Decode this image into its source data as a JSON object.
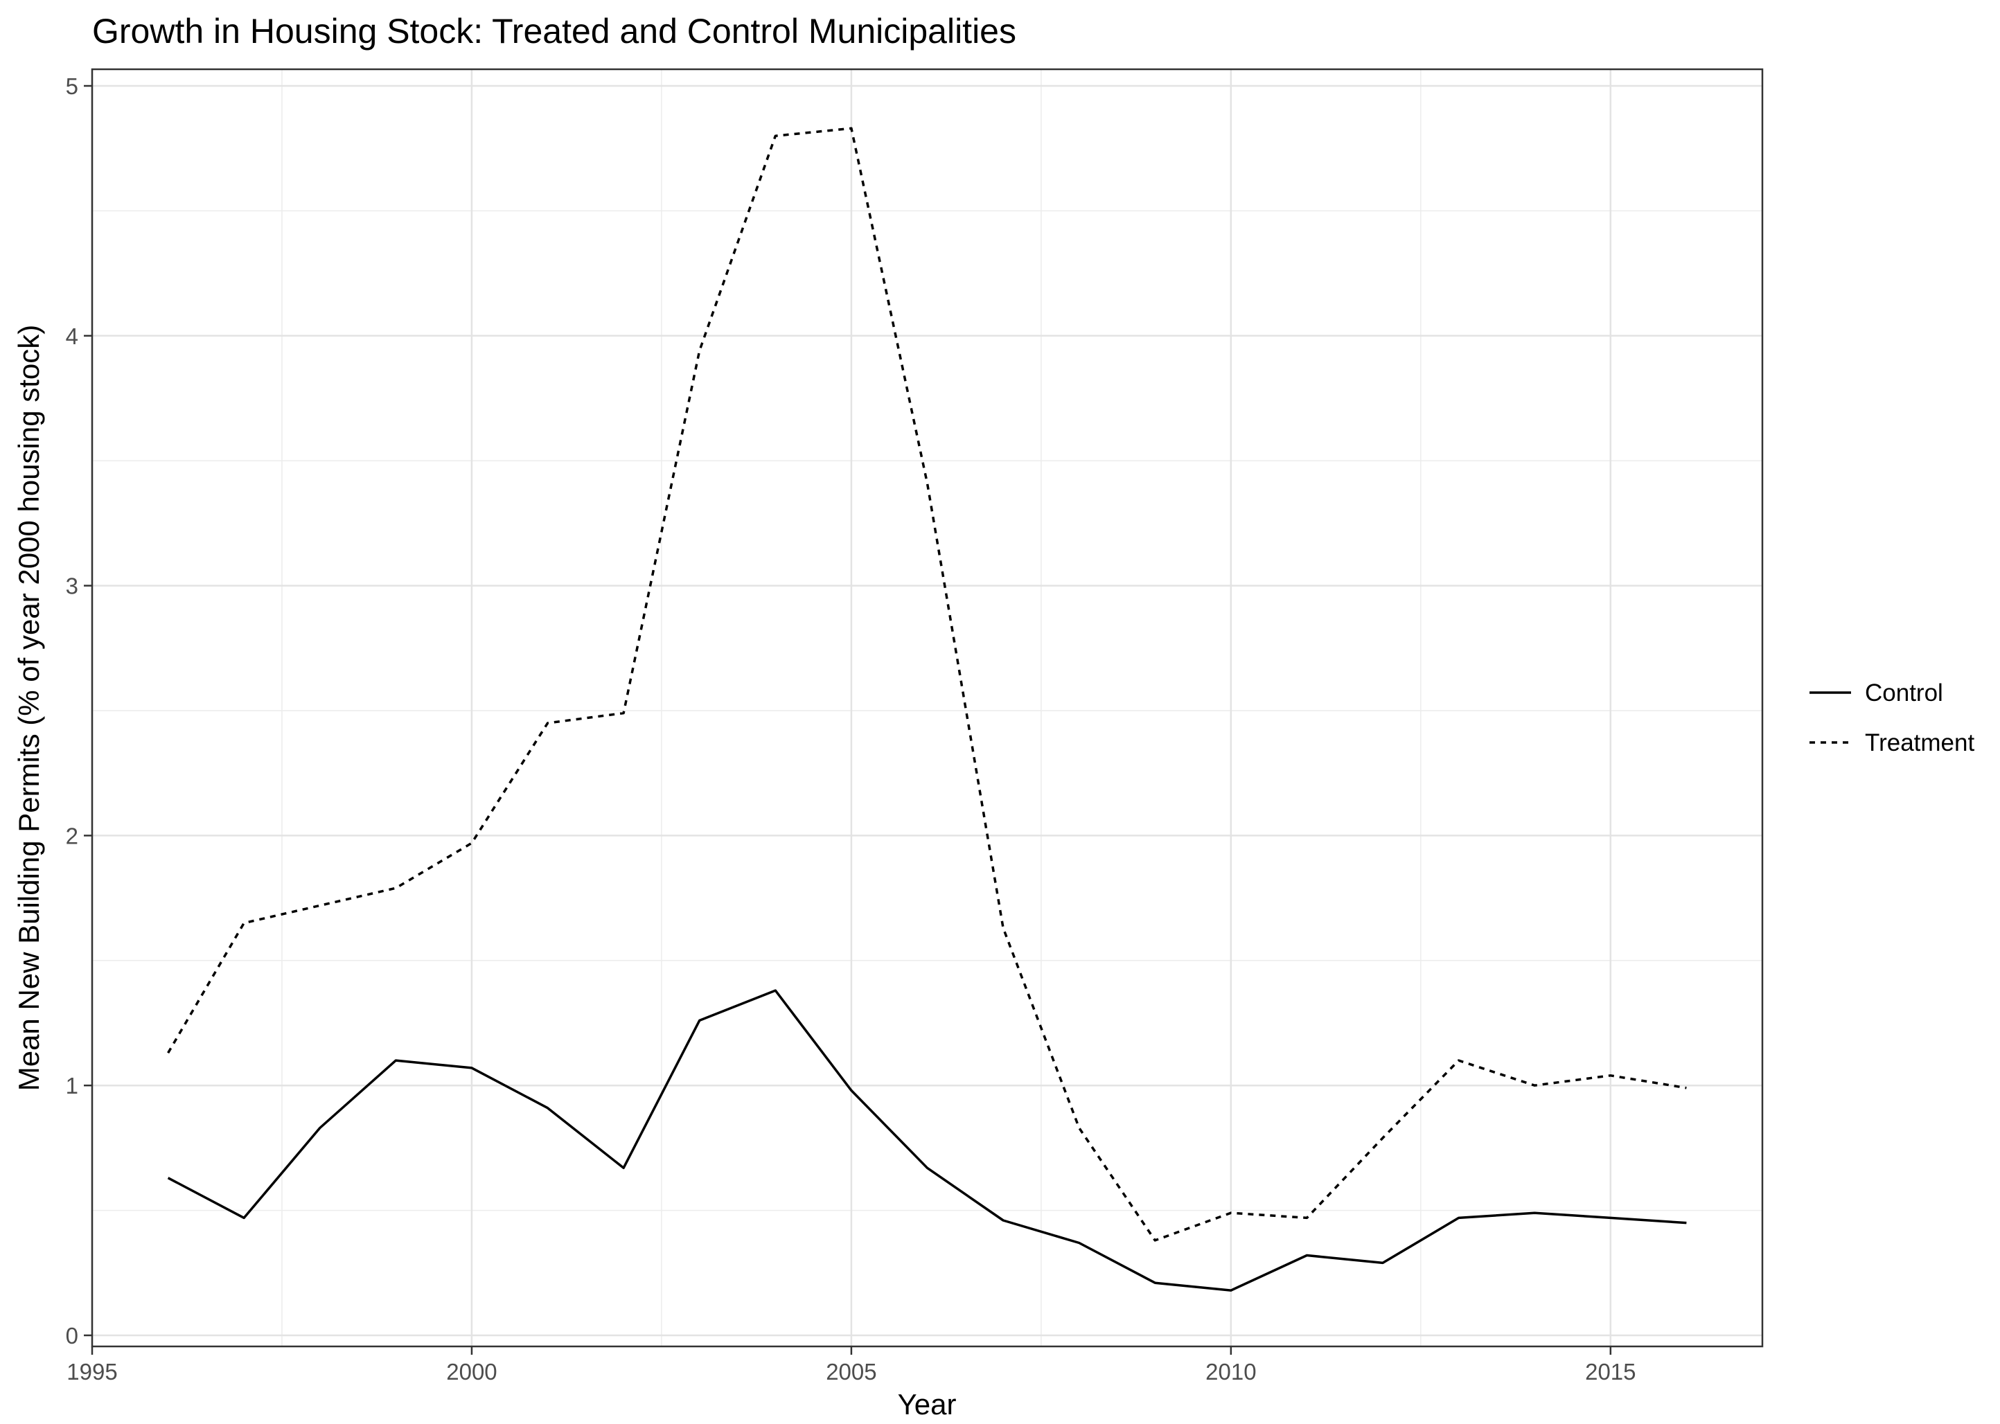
{
  "chart_data": {
    "type": "line",
    "title": "Growth in Housing Stock: Treated and Control Municipalities",
    "xlabel": "Year",
    "ylabel": "Mean New Building Permits (% of year 2000 housing stock)",
    "xlim": [
      1995,
      2017
    ],
    "ylim": [
      0,
      5
    ],
    "x_ticks": [
      "1995",
      "2000",
      "2005",
      "2010",
      "2015"
    ],
    "y_ticks": [
      "0",
      "1",
      "2",
      "3",
      "4",
      "5"
    ],
    "grid": true,
    "legend_position": "right",
    "x": [
      1996,
      1997,
      1998,
      1999,
      2000,
      2001,
      2002,
      2003,
      2004,
      2005,
      2006,
      2007,
      2008,
      2009,
      2010,
      2011,
      2012,
      2013,
      2014,
      2015,
      2016
    ],
    "series": [
      {
        "name": "Control",
        "line_style": "solid",
        "values": [
          0.63,
          0.47,
          0.83,
          1.1,
          1.07,
          0.91,
          0.67,
          1.26,
          1.38,
          0.98,
          0.67,
          0.46,
          0.37,
          0.21,
          0.18,
          0.32,
          0.29,
          0.47,
          0.49,
          0.47,
          0.45
        ]
      },
      {
        "name": "Treatment",
        "line_style": "dashed",
        "values": [
          1.13,
          1.65,
          1.72,
          1.79,
          1.97,
          2.45,
          2.49,
          3.94,
          4.8,
          4.83,
          3.41,
          1.63,
          0.83,
          0.38,
          0.49,
          0.47,
          0.79,
          1.1,
          1.0,
          1.04,
          0.99
        ]
      }
    ]
  }
}
